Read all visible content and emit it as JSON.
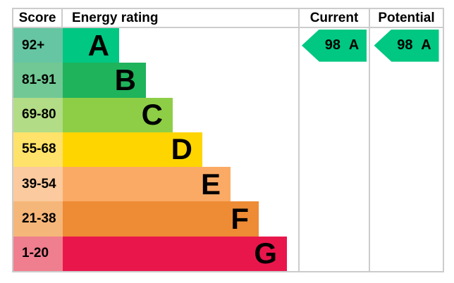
{
  "header": {
    "score_label": "Score",
    "energy_rating_label": "Energy rating",
    "current_label": "Current",
    "potential_label": "Potential"
  },
  "bands": [
    {
      "score": "92+",
      "letter": "A",
      "bar_color": "#00c781",
      "score_bg": "#66c5a2"
    },
    {
      "score": "81-91",
      "letter": "B",
      "bar_color": "#1fb35c",
      "score_bg": "#71c894"
    },
    {
      "score": "69-80",
      "letter": "C",
      "bar_color": "#8dce46",
      "score_bg": "#b3dc86"
    },
    {
      "score": "55-68",
      "letter": "D",
      "bar_color": "#ffd500",
      "score_bg": "#ffe269"
    },
    {
      "score": "39-54",
      "letter": "E",
      "bar_color": "#fbaa65",
      "score_bg": "#fbca9e"
    },
    {
      "score": "21-38",
      "letter": "F",
      "bar_color": "#ee8b35",
      "score_bg": "#f5b679"
    },
    {
      "score": "1-20",
      "letter": "G",
      "bar_color": "#e9164c",
      "score_bg": "#ef7e8e"
    }
  ],
  "current": {
    "label": "98 A",
    "color": "#00c781"
  },
  "potential": {
    "label": "98 A",
    "color": "#00c781"
  },
  "chart_data": {
    "type": "table",
    "columns": [
      "Score",
      "Energy rating",
      "Current",
      "Potential"
    ],
    "bands": [
      {
        "band": "A",
        "score_range": "92+"
      },
      {
        "band": "B",
        "score_range": "81-91"
      },
      {
        "band": "C",
        "score_range": "69-80"
      },
      {
        "band": "D",
        "score_range": "55-68"
      },
      {
        "band": "E",
        "score_range": "39-54"
      },
      {
        "band": "F",
        "score_range": "21-38"
      },
      {
        "band": "G",
        "score_range": "1-20"
      }
    ],
    "current": {
      "score": 98,
      "band": "A"
    },
    "potential": {
      "score": 98,
      "band": "A"
    }
  }
}
